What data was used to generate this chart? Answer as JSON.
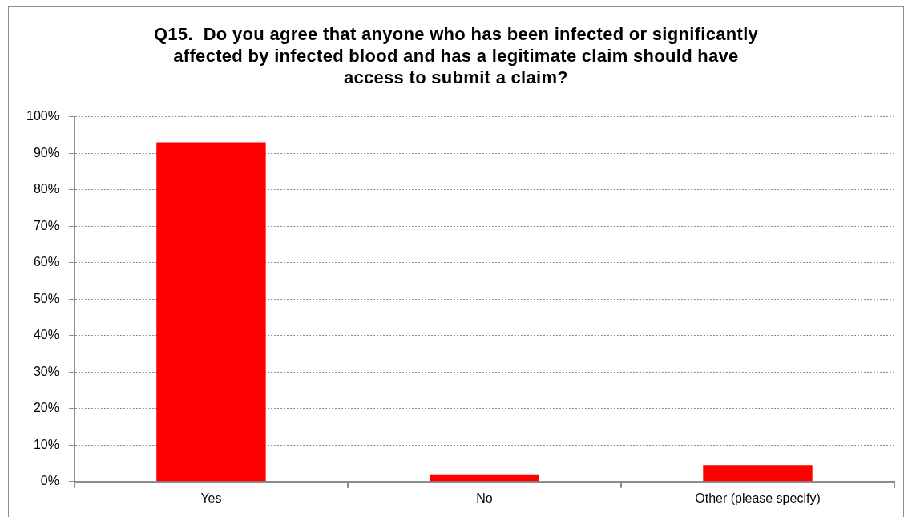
{
  "chart_data": {
    "type": "bar",
    "title": "Q15.  Do you agree that anyone who has been infected or significantly affected by infected blood and has a legitimate claim should have access to submit a claim?",
    "categories": [
      "Yes",
      "No",
      "Other (please specify)"
    ],
    "values": [
      93,
      2,
      4.5
    ],
    "color": "#ff0000",
    "ylim": [
      0,
      100
    ],
    "yticks": [
      {
        "value": 0,
        "label": "0%"
      },
      {
        "value": 10,
        "label": "10%"
      },
      {
        "value": 20,
        "label": "20%"
      },
      {
        "value": 30,
        "label": "30%"
      },
      {
        "value": 40,
        "label": "40%"
      },
      {
        "value": 50,
        "label": "50%"
      },
      {
        "value": 60,
        "label": "60%"
      },
      {
        "value": 70,
        "label": "70%"
      },
      {
        "value": 80,
        "label": "80%"
      },
      {
        "value": 90,
        "label": "90%"
      },
      {
        "value": 100,
        "label": "100%"
      }
    ],
    "grid": "y"
  }
}
